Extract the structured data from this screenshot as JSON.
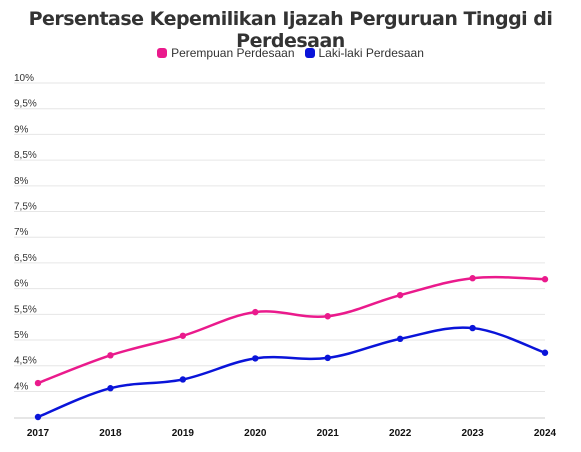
{
  "chart_data": {
    "type": "line",
    "title": "Persentase Kepemilikan Ijazah Perguruan Tinggi di Perdesaan",
    "xlabel": "",
    "ylabel": "",
    "x": [
      "2017",
      "2018",
      "2019",
      "2020",
      "2021",
      "2022",
      "2023",
      "2024"
    ],
    "yticks": [
      "4%",
      "4,5%",
      "5%",
      "5,5%",
      "6%",
      "6,5%",
      "7%",
      "7,5%",
      "8%",
      "8,5%",
      "9%",
      "9,5%",
      "10%"
    ],
    "ylim": [
      3.6,
      10
    ],
    "grid": true,
    "legend_position": "top-center",
    "series": [
      {
        "name": "Perempuan Perdesaan",
        "color": "#ea1a8c",
        "values": [
          4.26,
          4.8,
          5.18,
          5.64,
          5.56,
          5.97,
          6.3,
          6.28
        ]
      },
      {
        "name": "Laki-laki Perdesaan",
        "color": "#0a14d9",
        "values": [
          3.6,
          4.16,
          4.33,
          4.74,
          4.75,
          5.12,
          5.33,
          4.85
        ]
      }
    ]
  }
}
